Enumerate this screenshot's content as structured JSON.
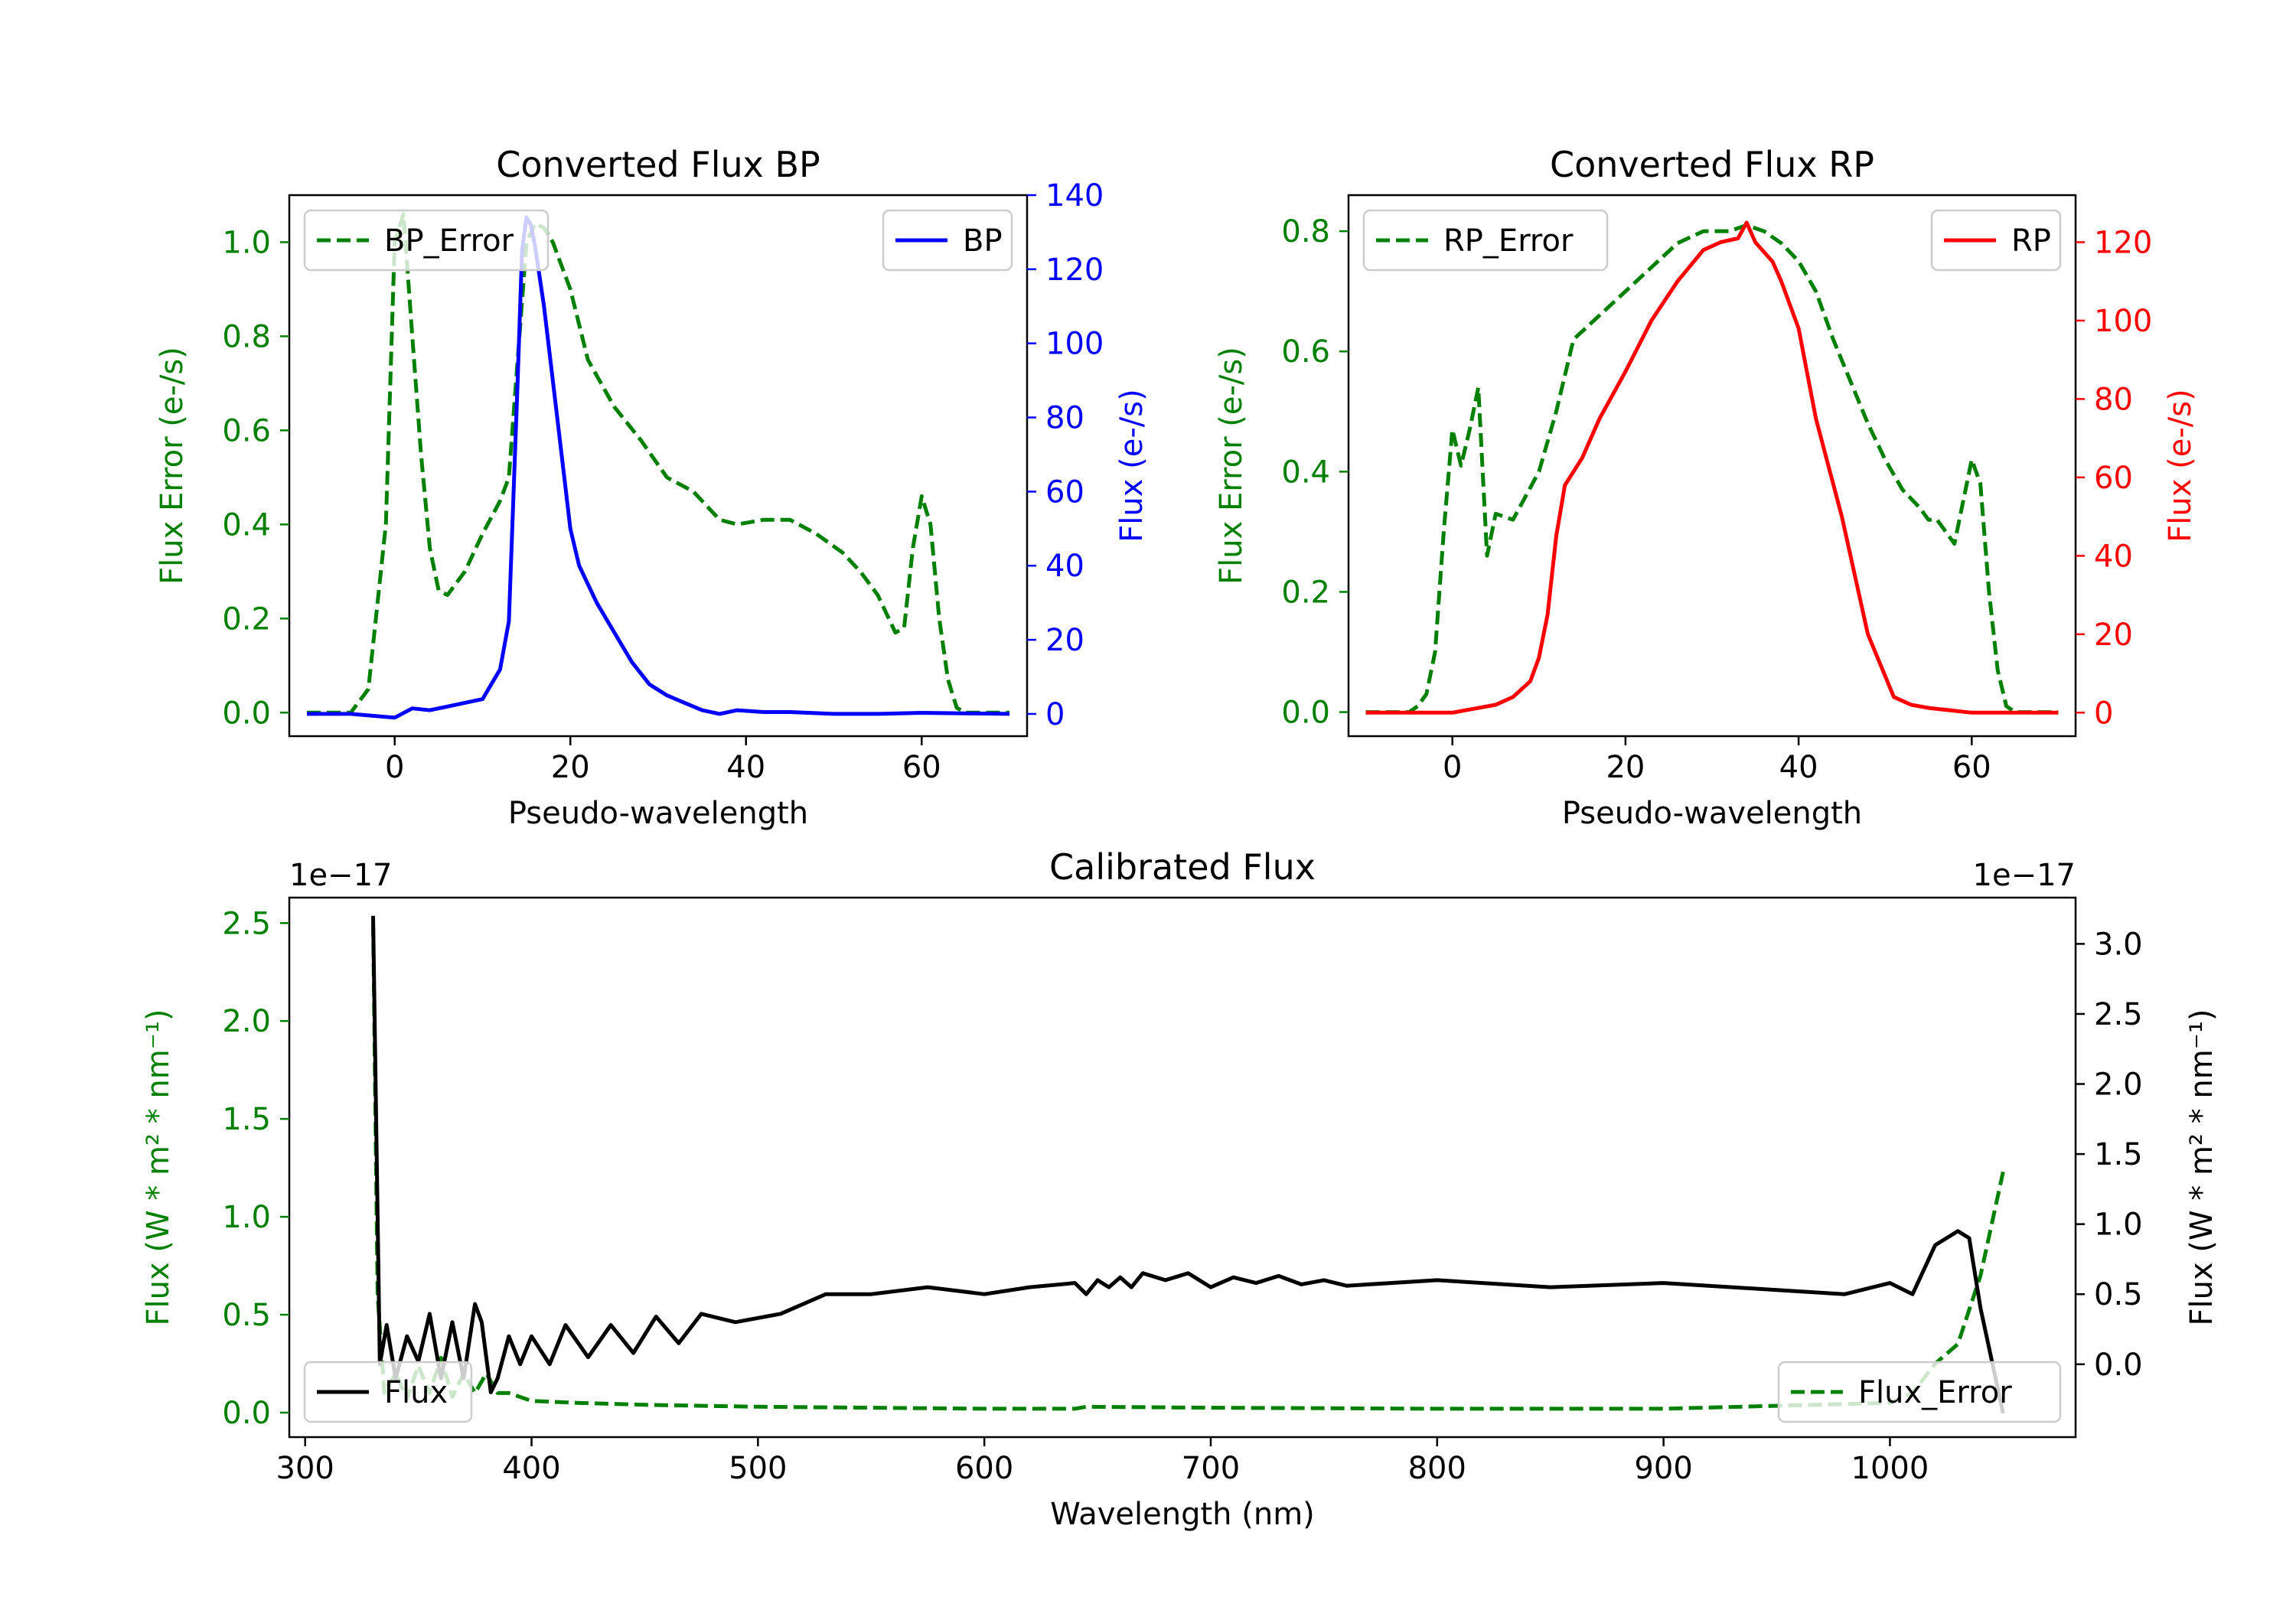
{
  "chart_data": [
    {
      "type": "line",
      "title": "Converted Flux BP",
      "xlabel": "Pseudo-wavelength",
      "xlim": [
        -12,
        72
      ],
      "xticks": [
        0,
        20,
        40,
        60
      ],
      "y_left": {
        "label": "Flux Error (e-/s)",
        "color": "#008000",
        "lim": [
          -0.05,
          1.1
        ],
        "ticks": [
          "0.0",
          "0.2",
          "0.4",
          "0.6",
          "0.8",
          "1.0"
        ],
        "tick_values": [
          0,
          0.2,
          0.4,
          0.6,
          0.8,
          1.0
        ]
      },
      "y_right": {
        "label": "Flux (e-/s)",
        "color": "#0000ff",
        "lim": [
          -6,
          140
        ],
        "ticks": [
          "0",
          "20",
          "40",
          "60",
          "80",
          "100",
          "120",
          "140"
        ],
        "tick_values": [
          0,
          20,
          40,
          60,
          80,
          100,
          120,
          140
        ]
      },
      "series": [
        {
          "name": "BP_Error",
          "axis": "left",
          "color": "#008000",
          "dash": true,
          "x": [
            -10,
            -5,
            -3,
            -1,
            0,
            1,
            2,
            3,
            4,
            5,
            6,
            8,
            10,
            12,
            13,
            14,
            15,
            16,
            17,
            18,
            20,
            22,
            25,
            28,
            31,
            34,
            37,
            39,
            42,
            45,
            48,
            51,
            53,
            55,
            57,
            58,
            59,
            60,
            61,
            62,
            63,
            64,
            65,
            70
          ],
          "values": [
            0,
            0,
            0.05,
            0.4,
            1.0,
            1.06,
            0.8,
            0.55,
            0.35,
            0.26,
            0.25,
            0.3,
            0.38,
            0.45,
            0.5,
            0.75,
            1.0,
            1.04,
            1.03,
            1.0,
            0.9,
            0.75,
            0.65,
            0.58,
            0.5,
            0.47,
            0.41,
            0.4,
            0.41,
            0.41,
            0.38,
            0.34,
            0.3,
            0.25,
            0.17,
            0.18,
            0.35,
            0.46,
            0.4,
            0.2,
            0.07,
            0.01,
            0,
            0
          ]
        },
        {
          "name": "BP",
          "axis": "right",
          "color": "#0000ff",
          "dash": false,
          "x": [
            -10,
            -5,
            0,
            2,
            4,
            6,
            8,
            10,
            12,
            13,
            14,
            14.5,
            15,
            15.5,
            16,
            17,
            18,
            19,
            20,
            21,
            23,
            25,
            27,
            29,
            31,
            33,
            35,
            37,
            39,
            42,
            45,
            50,
            55,
            60,
            70
          ],
          "values": [
            0,
            0,
            -1,
            1.5,
            1,
            2,
            3,
            4,
            12,
            25,
            90,
            125,
            134,
            132,
            126,
            110,
            90,
            70,
            50,
            40,
            30,
            22,
            14,
            8,
            5,
            3,
            1,
            0,
            1,
            0.5,
            0.5,
            0,
            0,
            0.3,
            0
          ]
        }
      ],
      "legends": [
        {
          "label": "BP_Error",
          "loc": "upper left"
        },
        {
          "label": "BP",
          "loc": "upper right"
        }
      ]
    },
    {
      "type": "line",
      "title": "Converted Flux RP",
      "xlabel": "Pseudo-wavelength",
      "xlim": [
        -12,
        72
      ],
      "xticks": [
        0,
        20,
        40,
        60
      ],
      "y_left": {
        "label": "Flux Error (e-/s)",
        "color": "#008000",
        "lim": [
          -0.04,
          0.86
        ],
        "ticks": [
          "0.0",
          "0.2",
          "0.4",
          "0.6",
          "0.8"
        ],
        "tick_values": [
          0,
          0.2,
          0.4,
          0.6,
          0.8
        ]
      },
      "y_right": {
        "label": "Flux (e-/s)",
        "color": "#ff0000",
        "lim": [
          -6,
          132
        ],
        "ticks": [
          "0",
          "20",
          "40",
          "60",
          "80",
          "100",
          "120"
        ],
        "tick_values": [
          0,
          20,
          40,
          60,
          80,
          100,
          120
        ]
      },
      "series": [
        {
          "name": "RP_Error",
          "axis": "left",
          "color": "#008000",
          "dash": true,
          "x": [
            -10,
            -5,
            -4,
            -3,
            -2,
            -1,
            0,
            1,
            2,
            3,
            4,
            5,
            7,
            10,
            12,
            14,
            17,
            20,
            23,
            26,
            29,
            32,
            34,
            36,
            38,
            40,
            42,
            44,
            46,
            48,
            50,
            52,
            54,
            55,
            56,
            57,
            58,
            59,
            60,
            61,
            62,
            63,
            64,
            65,
            70
          ],
          "values": [
            0,
            0,
            0.01,
            0.03,
            0.1,
            0.3,
            0.47,
            0.41,
            0.47,
            0.54,
            0.26,
            0.33,
            0.32,
            0.4,
            0.5,
            0.62,
            0.66,
            0.7,
            0.74,
            0.78,
            0.8,
            0.8,
            0.81,
            0.8,
            0.78,
            0.75,
            0.7,
            0.62,
            0.55,
            0.48,
            0.42,
            0.37,
            0.34,
            0.32,
            0.32,
            0.3,
            0.28,
            0.35,
            0.42,
            0.38,
            0.2,
            0.07,
            0.01,
            0,
            0
          ]
        },
        {
          "name": "RP",
          "axis": "right",
          "color": "#ff0000",
          "dash": false,
          "x": [
            -10,
            -5,
            0,
            2,
            5,
            7,
            9,
            10,
            11,
            12,
            13,
            15,
            17,
            20,
            23,
            26,
            29,
            31,
            33,
            34,
            35,
            37,
            38,
            40,
            42,
            45,
            48,
            51,
            53,
            55,
            60,
            65,
            70
          ],
          "values": [
            0,
            0,
            0,
            0.8,
            2,
            4,
            8,
            14,
            25,
            45,
            58,
            65,
            75,
            87,
            100,
            110,
            118,
            120,
            121,
            125,
            120,
            115,
            110,
            98,
            75,
            50,
            20,
            4,
            2,
            1.2,
            0,
            0,
            0
          ]
        }
      ],
      "legends": [
        {
          "label": "RP_Error",
          "loc": "upper left"
        },
        {
          "label": "RP",
          "loc": "upper right"
        }
      ]
    },
    {
      "type": "line",
      "title": "Calibrated Flux",
      "xlabel": "Wavelength (nm)",
      "xlim": [
        293,
        1082
      ],
      "xticks": [
        300,
        400,
        500,
        600,
        700,
        800,
        900,
        1000
      ],
      "y_left": {
        "label": "Flux (W * m² * nm⁻¹)",
        "color": "#008000",
        "scale": "1e−17",
        "lim": [
          -0.125,
          2.63
        ],
        "ticks": [
          "0.0",
          "0.5",
          "1.0",
          "1.5",
          "2.0",
          "2.5"
        ],
        "tick_values": [
          0,
          0.5,
          1.0,
          1.5,
          2.0,
          2.5
        ]
      },
      "y_right": {
        "label": "Flux (W * m² * nm⁻¹)",
        "color": "#000000",
        "scale": "1e−17",
        "lim": [
          -0.52,
          3.33
        ],
        "ticks": [
          "0.0",
          "0.5",
          "1.0",
          "1.5",
          "2.0",
          "2.5",
          "3.0"
        ],
        "tick_values": [
          0,
          0.5,
          1.0,
          1.5,
          2.0,
          2.5,
          3.0
        ]
      },
      "series": [
        {
          "name": "Flux_Error",
          "axis": "left",
          "color": "#008000",
          "dash": true,
          "x": [
            330,
            332,
            335,
            340,
            345,
            350,
            355,
            360,
            365,
            370,
            375,
            380,
            385,
            390,
            400,
            420,
            450,
            500,
            550,
            600,
            640,
            645,
            700,
            800,
            900,
            1000,
            1010,
            1020,
            1030,
            1040,
            1050
          ],
          "values": [
            2.5,
            0.6,
            0.1,
            0.2,
            0.07,
            0.24,
            0.1,
            0.28,
            0.08,
            0.2,
            0.1,
            0.2,
            0.1,
            0.1,
            0.06,
            0.05,
            0.04,
            0.03,
            0.025,
            0.02,
            0.02,
            0.03,
            0.025,
            0.02,
            0.02,
            0.05,
            0.1,
            0.25,
            0.35,
            0.7,
            1.23
          ]
        },
        {
          "name": "Flux",
          "axis": "right",
          "color": "#000000",
          "dash": false,
          "x": [
            330,
            333,
            336,
            340,
            345,
            350,
            355,
            360,
            365,
            370,
            375,
            378,
            382,
            385,
            390,
            395,
            400,
            408,
            415,
            425,
            435,
            445,
            455,
            465,
            475,
            490,
            510,
            530,
            550,
            575,
            600,
            620,
            640,
            645,
            650,
            655,
            660,
            665,
            670,
            680,
            690,
            700,
            710,
            720,
            730,
            740,
            750,
            760,
            800,
            850,
            900,
            950,
            980,
            1000,
            1010,
            1020,
            1030,
            1035,
            1040,
            1050
          ],
          "values": [
            3.2,
            0.0,
            0.28,
            -0.1,
            0.2,
            0.02,
            0.36,
            -0.1,
            0.3,
            -0.1,
            0.43,
            0.3,
            -0.2,
            -0.1,
            0.2,
            0,
            0.2,
            0,
            0.28,
            0.05,
            0.28,
            0.08,
            0.34,
            0.15,
            0.36,
            0.3,
            0.36,
            0.5,
            0.5,
            0.55,
            0.5,
            0.55,
            0.58,
            0.5,
            0.6,
            0.55,
            0.62,
            0.55,
            0.65,
            0.6,
            0.65,
            0.55,
            0.62,
            0.58,
            0.63,
            0.57,
            0.6,
            0.56,
            0.6,
            0.55,
            0.58,
            0.53,
            0.5,
            0.58,
            0.5,
            0.85,
            0.95,
            0.9,
            0.4,
            -0.35
          ]
        }
      ],
      "legends": [
        {
          "label": "Flux",
          "loc": "lower left"
        },
        {
          "label": "Flux_Error",
          "loc": "lower right"
        }
      ]
    }
  ]
}
